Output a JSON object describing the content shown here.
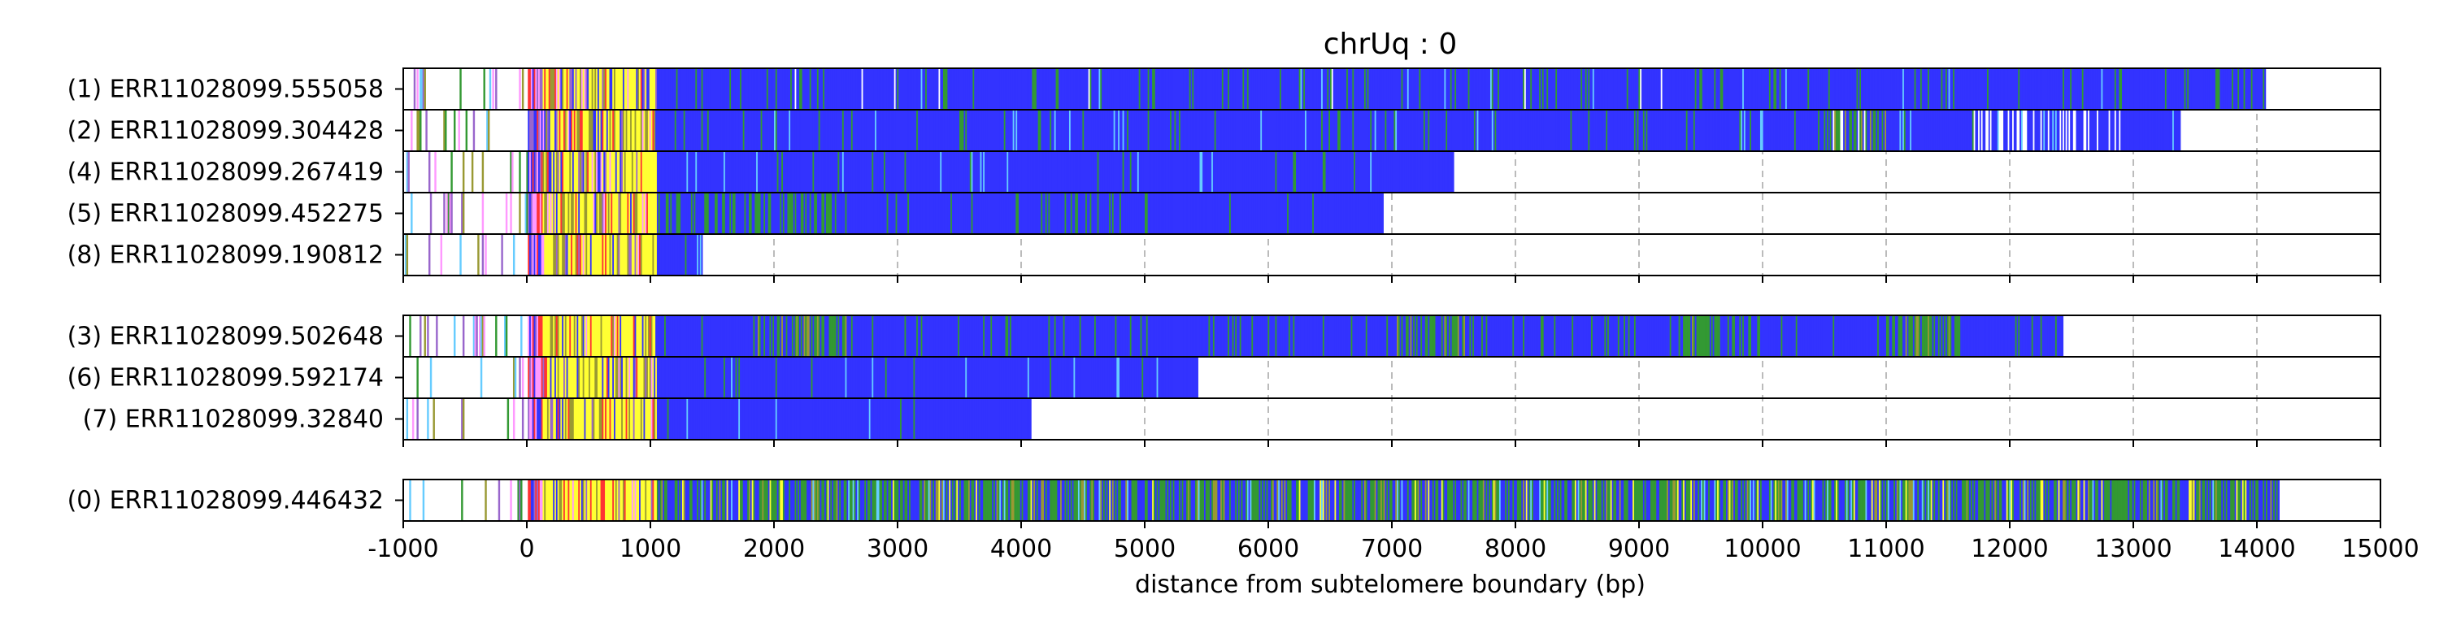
{
  "chart_data": {
    "type": "bar",
    "title": "chrUq : 0",
    "xlabel": "distance from subtelomere boundary (bp)",
    "ylabel": "",
    "xlim": [
      -1000,
      15000
    ],
    "x_ticks": [
      "-1000",
      "0",
      "1000",
      "2000",
      "3000",
      "4000",
      "5000",
      "6000",
      "7000",
      "8000",
      "9000",
      "10000",
      "11000",
      "12000",
      "13000",
      "14000",
      "15000"
    ],
    "grid": "vertical dashed",
    "colors": {
      "blue": "#3333ff",
      "green": "#339933",
      "yellow": "#ffff33",
      "red": "#ff3333",
      "pink": "#ff99ff",
      "purple": "#9966cc",
      "olive": "#999933",
      "cyan": "#66ccff",
      "white": "#ffffff"
    },
    "groups": [
      {
        "reads": [
          {
            "label": "(1) ERR11028099.555058",
            "end": 14070,
            "profile": "blue_sparse_green"
          },
          {
            "label": "(2) ERR11028099.304428",
            "end": 13380,
            "profile": "blue_mixed_tail"
          },
          {
            "label": "(4) ERR11028099.267419",
            "end": 7500,
            "profile": "blue_solid"
          },
          {
            "label": "(5) ERR11028099.452275",
            "end": 6930,
            "profile": "blue_green_early"
          },
          {
            "label": "(8) ERR11028099.190812",
            "end": 1420,
            "profile": "blue_solid"
          }
        ]
      },
      {
        "reads": [
          {
            "label": "(3) ERR11028099.502648",
            "end": 12430,
            "profile": "blue_green_bands"
          },
          {
            "label": "(6) ERR11028099.592174",
            "end": 5430,
            "profile": "blue_solid"
          },
          {
            "label": "(7) ERR11028099.32840",
            "end": 4080,
            "profile": "blue_solid"
          }
        ]
      },
      {
        "reads": [
          {
            "label": "(0) ERR11028099.446432",
            "end": 14180,
            "profile": "green_dense"
          }
        ]
      }
    ]
  }
}
